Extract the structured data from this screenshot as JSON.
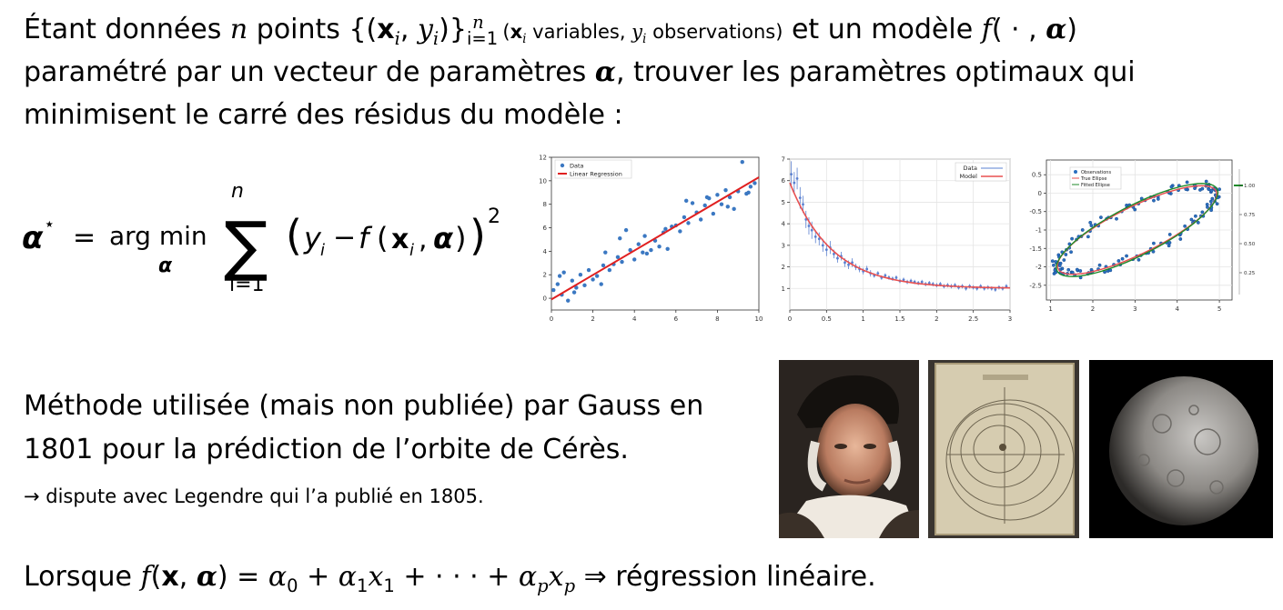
{
  "intro": {
    "prefix": "Étant données ",
    "n": "n",
    "mid": " points ",
    "set_open": "{(",
    "x": "x",
    "i": "i",
    "comma": ", ",
    "y": "y",
    "set_close": ")}",
    "set_sub": "i=1",
    "set_sup": "n",
    "paren_open": " (",
    "variables": " variables, ",
    "observations": " observations)",
    "model": " et un modèle ",
    "f": "f",
    "f_args": "( · , ",
    "alpha": "α",
    "close": ")"
  },
  "line2": {
    "text": "paramétré par un vecteur de paramètres ",
    "alpha": "α",
    "rest": ", trouver les paramètres optimaux qui"
  },
  "line3": {
    "text": "minimisent le carré des résidus du modèle :"
  },
  "formula": {
    "lhs": "α",
    "star": "⋆",
    "eq": "=",
    "argmin": "arg min",
    "under": "α",
    "sum": "∑",
    "sum_top": "n",
    "sum_bottom": "i=1",
    "body_y": "y",
    "body_i": "i",
    "minus": "−",
    "body_f": "f",
    "body_x": "x",
    "body_alpha": "α",
    "power": "2"
  },
  "gauss": {
    "line1": "Méthode utilisée (mais non publiée) par Gauss en",
    "line2": "1801 pour la prédiction de l’orbite de Cérès.",
    "line3": "→ dispute avec Legendre qui l’a publié en 1805."
  },
  "bottom": {
    "prefix": "Lorsque ",
    "f": "f",
    "open": "(",
    "x": "x",
    "comma": ", ",
    "alpha": "α",
    "close": ")",
    "eq": " = ",
    "a0": "α",
    "s0": "0",
    "plus1": " + ",
    "a1": "α",
    "s1": "1",
    "x1": "x",
    "x1s": "1",
    "dots": " + · · · + ",
    "ap": "α",
    "sp": "p",
    "xp": "x",
    "xps": "p",
    "implies": " ⇒ ",
    "result": "régression linéaire."
  },
  "chart_data": [
    {
      "type": "scatter",
      "title": "",
      "xlabel": "",
      "ylabel": "",
      "xlim": [
        0,
        10
      ],
      "ylim": [
        -1,
        12
      ],
      "xticks": [
        0,
        2,
        4,
        6,
        8,
        10
      ],
      "yticks": [
        0,
        2,
        4,
        6,
        8,
        10,
        12
      ],
      "legend": [
        "Data",
        "Linear Regression"
      ],
      "legend_position": "top-left",
      "series": [
        {
          "name": "Data",
          "kind": "points",
          "color": "#3b78c2",
          "x": [
            0.1,
            0.3,
            0.5,
            0.6,
            0.8,
            1.0,
            1.2,
            1.4,
            1.6,
            1.8,
            2.0,
            2.2,
            2.4,
            2.6,
            2.8,
            3.0,
            3.2,
            3.4,
            3.6,
            3.8,
            4.0,
            4.2,
            4.4,
            4.6,
            4.8,
            5.0,
            5.2,
            5.4,
            5.6,
            5.8,
            6.0,
            6.2,
            6.4,
            6.6,
            6.8,
            7.0,
            7.2,
            7.4,
            7.6,
            7.8,
            8.0,
            8.2,
            8.4,
            8.6,
            8.8,
            9.0,
            9.2,
            9.4,
            9.6,
            9.8,
            0.4,
            1.1,
            2.5,
            3.3,
            4.5,
            5.5,
            6.5,
            7.5,
            8.5,
            9.5
          ],
          "y": [
            0.7,
            1.2,
            0.3,
            2.2,
            -0.2,
            1.5,
            0.9,
            2.0,
            1.1,
            2.4,
            1.6,
            1.9,
            1.2,
            3.9,
            2.4,
            2.9,
            3.5,
            3.1,
            5.8,
            4.1,
            3.3,
            4.6,
            3.9,
            3.8,
            4.1,
            4.9,
            4.4,
            5.6,
            4.2,
            6.1,
            6.2,
            5.7,
            6.9,
            6.4,
            8.1,
            7.3,
            6.7,
            7.9,
            8.5,
            7.2,
            8.8,
            8.0,
            9.2,
            8.6,
            7.6,
            9.1,
            11.6,
            8.9,
            9.5,
            9.8,
            1.9,
            0.5,
            2.8,
            5.1,
            5.3,
            5.9,
            8.3,
            8.6,
            7.8,
            9.0
          ]
        },
        {
          "name": "Linear Regression",
          "kind": "line",
          "color": "#e02020",
          "x": [
            0,
            10
          ],
          "y": [
            -0.1,
            10.3
          ]
        }
      ]
    },
    {
      "type": "scatter",
      "title": "",
      "xlabel": "",
      "ylabel": "",
      "xlim": [
        0,
        3
      ],
      "ylim": [
        0,
        7
      ],
      "xticks": [
        0,
        0.5,
        1,
        1.5,
        2,
        2.5,
        3
      ],
      "xtick_labels": [
        "0",
        "0.5",
        "1",
        "1.5",
        "2",
        "2.5",
        "3"
      ],
      "yticks": [
        1,
        2,
        3,
        4,
        5,
        6,
        7
      ],
      "legend": [
        "Data",
        "Model"
      ],
      "legend_position": "top-right",
      "series": [
        {
          "name": "Data",
          "kind": "errorbar",
          "color": "#5a80d0",
          "x": [
            0.02,
            0.06,
            0.1,
            0.14,
            0.18,
            0.22,
            0.26,
            0.3,
            0.35,
            0.4,
            0.45,
            0.5,
            0.55,
            0.6,
            0.65,
            0.7,
            0.75,
            0.8,
            0.85,
            0.9,
            0.95,
            1.0,
            1.05,
            1.1,
            1.15,
            1.2,
            1.25,
            1.3,
            1.35,
            1.4,
            1.45,
            1.5,
            1.55,
            1.6,
            1.65,
            1.7,
            1.75,
            1.8,
            1.85,
            1.9,
            1.95,
            2.0,
            2.05,
            2.1,
            2.15,
            2.2,
            2.25,
            2.3,
            2.35,
            2.4,
            2.45,
            2.5,
            2.55,
            2.6,
            2.65,
            2.7,
            2.75,
            2.8,
            2.85,
            2.9,
            2.95
          ],
          "y": [
            6.3,
            5.9,
            6.1,
            5.2,
            4.9,
            4.2,
            3.9,
            3.7,
            3.4,
            3.3,
            3.0,
            2.8,
            2.9,
            2.6,
            2.4,
            2.5,
            2.2,
            2.1,
            2.2,
            2.0,
            1.9,
            1.8,
            1.9,
            1.7,
            1.6,
            1.7,
            1.5,
            1.6,
            1.5,
            1.45,
            1.5,
            1.35,
            1.4,
            1.3,
            1.35,
            1.3,
            1.25,
            1.3,
            1.2,
            1.25,
            1.2,
            1.15,
            1.2,
            1.1,
            1.15,
            1.1,
            1.15,
            1.05,
            1.1,
            1.0,
            1.1,
            1.05,
            1.0,
            1.1,
            1.0,
            1.05,
            1.0,
            0.95,
            1.05,
            1.0,
            1.1
          ],
          "err": [
            0.6,
            0.5,
            0.5,
            0.5,
            0.4,
            0.4,
            0.4,
            0.4,
            0.3,
            0.3,
            0.3,
            0.3,
            0.3,
            0.2,
            0.2,
            0.2,
            0.2,
            0.2,
            0.2,
            0.15,
            0.15,
            0.15,
            0.15,
            0.15,
            0.1,
            0.1,
            0.1,
            0.1,
            0.1,
            0.1,
            0.1,
            0.1,
            0.1,
            0.1,
            0.1,
            0.1,
            0.1,
            0.1,
            0.1,
            0.1,
            0.1,
            0.1,
            0.1,
            0.1,
            0.1,
            0.1,
            0.1,
            0.1,
            0.1,
            0.1,
            0.1,
            0.1,
            0.1,
            0.1,
            0.1,
            0.1,
            0.1,
            0.1,
            0.1,
            0.1,
            0.1
          ]
        },
        {
          "name": "Model",
          "kind": "curve",
          "color": "#e85050",
          "model": {
            "a": 4.9,
            "b": 1.75,
            "c": 1.0
          }
        }
      ]
    },
    {
      "type": "scatter",
      "title": "",
      "xlabel": "",
      "ylabel": "",
      "xlim": [
        0.9,
        5.3
      ],
      "ylim": [
        -2.9,
        0.9
      ],
      "xticks": [
        1,
        2,
        3,
        4,
        5
      ],
      "yticks": [
        0.5,
        0.0,
        -0.5,
        -1.0,
        -1.5,
        -2.0,
        -2.5
      ],
      "yticks_right": [
        "1.00",
        "0.75",
        "0.50",
        "0.25"
      ],
      "legend": [
        "Observations",
        "True Ellipse",
        "Fitted Ellipse"
      ],
      "legend_position": "top-left",
      "ellipse_true": {
        "cx": 3.05,
        "cy": -1.0,
        "a": 2.15,
        "b": 0.62,
        "angle": 30
      },
      "ellipse_fit": {
        "cx": 3.05,
        "cy": -1.0,
        "a": 2.2,
        "b": 0.65,
        "angle": 31
      },
      "series": [
        {
          "name": "Observations",
          "kind": "points",
          "color": "#2a6fc0",
          "count": 150
        },
        {
          "name": "True Ellipse",
          "kind": "curve",
          "color": "#e85050"
        },
        {
          "name": "Fitted Ellipse",
          "kind": "curve",
          "color": "#1f8a2a"
        }
      ]
    }
  ]
}
